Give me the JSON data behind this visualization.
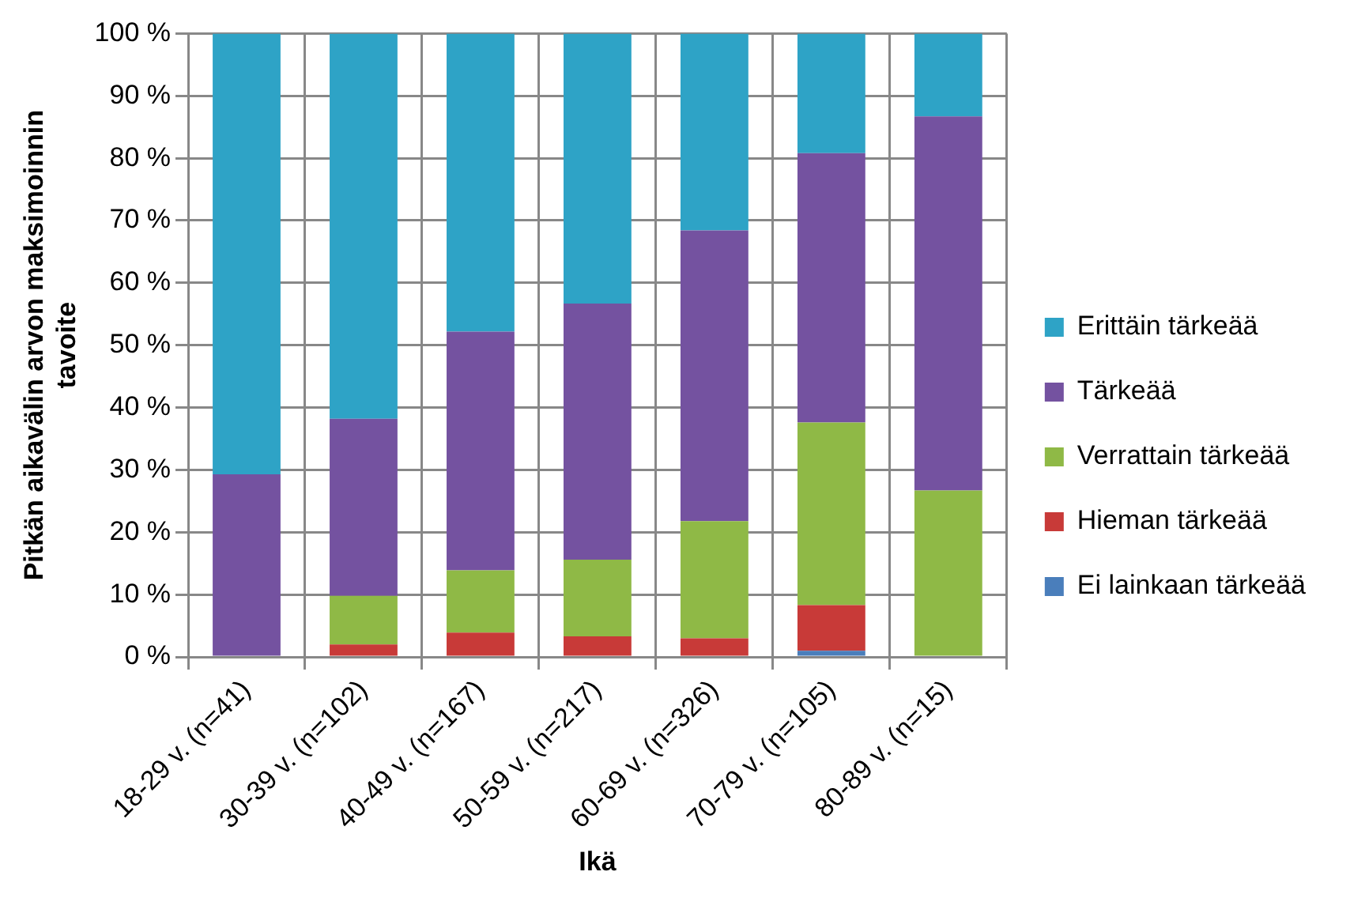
{
  "chart_data": {
    "type": "bar",
    "stacked": true,
    "xlabel": "Ikä",
    "ylabel": "Pitkän aikavälin arvon maksimoinnin tavoite",
    "categories": [
      "18-29 v. (n=41)",
      "30-39 v. (n=102)",
      "40-49 v. (n=167)",
      "50-59 v. (n=217)",
      "60-69 v. (n=326)",
      "70-79 v. (n=105)",
      "80-89 v. (n=15)"
    ],
    "series": [
      {
        "name": "Ei lainkaan tärkeää",
        "color": "#4a7ebb",
        "values": [
          0,
          0,
          0,
          0,
          0,
          1.0,
          0
        ]
      },
      {
        "name": "Hieman tärkeää",
        "color": "#c83a38",
        "values": [
          0,
          2.0,
          3.9,
          3.3,
          3.0,
          7.3,
          0
        ]
      },
      {
        "name": "Verrattain tärkeää",
        "color": "#8fb946",
        "values": [
          0,
          7.8,
          10.0,
          12.3,
          18.8,
          29.3,
          26.7
        ]
      },
      {
        "name": "Tärkeää",
        "color": "#7452a0",
        "values": [
          29.3,
          28.4,
          38.3,
          41.1,
          46.6,
          43.2,
          60.0
        ]
      },
      {
        "name": "Erittäin tärkeää",
        "color": "#2ea3c6",
        "values": [
          70.7,
          61.8,
          47.8,
          43.3,
          31.6,
          19.2,
          13.3
        ]
      }
    ],
    "ylim": [
      0,
      100
    ],
    "yticks": [
      {
        "value": 0,
        "label": "0 %"
      },
      {
        "value": 10,
        "label": "10 %"
      },
      {
        "value": 20,
        "label": "20 %"
      },
      {
        "value": 30,
        "label": "30 %"
      },
      {
        "value": 40,
        "label": "40 %"
      },
      {
        "value": 50,
        "label": "50 %"
      },
      {
        "value": 60,
        "label": "60 %"
      },
      {
        "value": 70,
        "label": "70 %"
      },
      {
        "value": 80,
        "label": "80 %"
      },
      {
        "value": 90,
        "label": "90 %"
      },
      {
        "value": 100,
        "label": "100 %"
      }
    ],
    "grid": true,
    "legend": "right"
  }
}
